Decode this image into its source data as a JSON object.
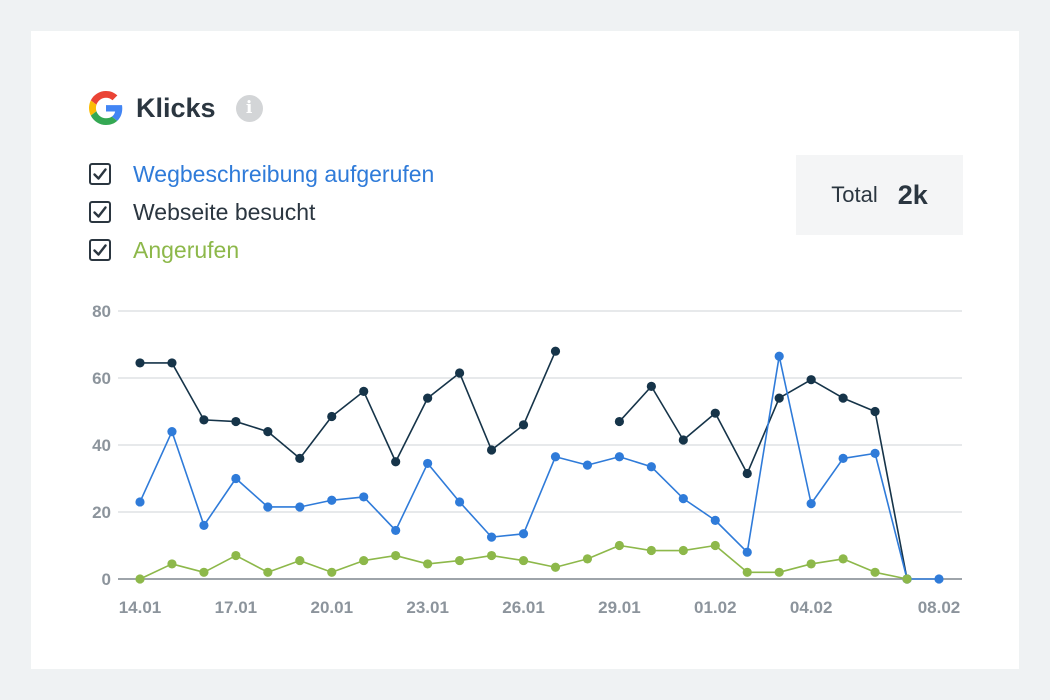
{
  "header": {
    "title": "Klicks",
    "info_icon": "info-icon",
    "logo_icon": "google-g-logo"
  },
  "legend": {
    "items": [
      {
        "label": "Wegbeschreibung aufgerufen",
        "color": "#2f7bd9",
        "checked": true
      },
      {
        "label": "Webseite besucht",
        "color": "#2b3640",
        "checked": true
      },
      {
        "label": "Angerufen",
        "color": "#8db84a",
        "checked": true
      }
    ]
  },
  "total": {
    "label": "Total",
    "value": "2k"
  },
  "chart_data": {
    "type": "line",
    "ylim": [
      0,
      80
    ],
    "yticks": [
      0,
      20,
      40,
      60,
      80
    ],
    "x": [
      "14.01",
      "15.01",
      "16.01",
      "17.01",
      "18.01",
      "19.01",
      "20.01",
      "21.01",
      "22.01",
      "23.01",
      "24.01",
      "25.01",
      "26.01",
      "27.01",
      "28.01",
      "29.01",
      "30.01",
      "31.01",
      "01.02",
      "02.02",
      "03.02",
      "04.02",
      "05.02",
      "06.02",
      "07.02",
      "08.02"
    ],
    "xtick_labels": [
      "14.01",
      "17.01",
      "20.01",
      "23.01",
      "26.01",
      "29.01",
      "01.02",
      "04.02",
      "08.02"
    ],
    "grid": true,
    "series": [
      {
        "name": "Webseite besucht",
        "color": "#163449",
        "values": [
          64.5,
          64.5,
          47.5,
          47,
          44,
          36,
          48.5,
          56,
          35,
          54,
          61.5,
          38.5,
          46,
          68,
          null,
          47,
          57.5,
          41.5,
          49.5,
          31.5,
          54,
          59.5,
          54,
          50,
          0,
          null
        ]
      },
      {
        "name": "Wegbeschreibung aufgerufen",
        "color": "#2f7bd9",
        "values": [
          23,
          44,
          16,
          30,
          21.5,
          21.5,
          23.5,
          24.5,
          14.5,
          34.5,
          23,
          12.5,
          13.5,
          36.5,
          34,
          36.5,
          33.5,
          24,
          17.5,
          8,
          66.5,
          22.5,
          36,
          37.5,
          0,
          0
        ]
      },
      {
        "name": "Angerufen",
        "color": "#8db84a",
        "values": [
          0,
          4.5,
          2,
          7,
          2,
          5.5,
          2,
          5.5,
          7,
          4.5,
          5.5,
          7,
          5.5,
          3.5,
          6,
          10,
          8.5,
          8.5,
          10,
          2,
          2,
          4.5,
          6,
          2,
          0,
          null
        ]
      }
    ]
  }
}
